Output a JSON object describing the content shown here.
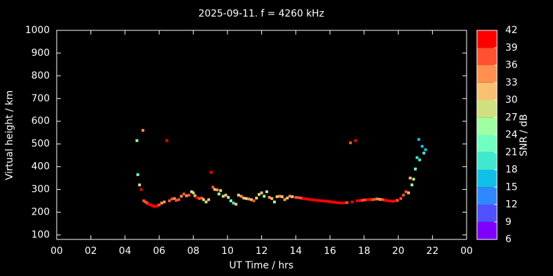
{
  "chart_data": {
    "type": "scatter",
    "title": "2025-09-11. f = 4260 kHz",
    "xlabel": "UT Time / hrs",
    "ylabel": "Virtual height / km",
    "xlim": [
      0,
      24
    ],
    "ylim": [
      80,
      1000
    ],
    "xticks": [
      {
        "value": 0,
        "label": "00"
      },
      {
        "value": 2,
        "label": "02"
      },
      {
        "value": 4,
        "label": "04"
      },
      {
        "value": 6,
        "label": "06"
      },
      {
        "value": 8,
        "label": "08"
      },
      10,
      12,
      14,
      16,
      18,
      20,
      22,
      {
        "value": 24,
        "label": "00"
      }
    ],
    "yticks": [
      100,
      200,
      300,
      400,
      500,
      600,
      700,
      800,
      900,
      1000
    ],
    "x": [
      4.7,
      4.75,
      4.85,
      4.95,
      5.05,
      5.1,
      5.2,
      5.3,
      5.4,
      5.5,
      5.6,
      5.7,
      5.8,
      5.9,
      6.0,
      6.15,
      6.3,
      6.45,
      6.6,
      6.75,
      6.9,
      7.0,
      7.15,
      7.3,
      7.45,
      7.6,
      7.75,
      7.9,
      8.0,
      8.1,
      8.2,
      8.35,
      8.5,
      8.6,
      8.75,
      8.9,
      9.05,
      9.15,
      9.25,
      9.4,
      9.5,
      9.6,
      9.75,
      9.9,
      10.05,
      10.2,
      10.35,
      10.5,
      10.65,
      10.8,
      10.95,
      11.1,
      11.25,
      11.4,
      11.55,
      11.7,
      11.85,
      12.0,
      12.15,
      12.3,
      12.45,
      12.6,
      12.75,
      12.9,
      13.05,
      13.2,
      13.35,
      13.5,
      13.65,
      13.8,
      14.0,
      14.15,
      14.3,
      14.45,
      14.6,
      14.75,
      14.9,
      15.05,
      15.2,
      15.35,
      15.5,
      15.65,
      15.8,
      15.95,
      16.1,
      16.25,
      16.4,
      16.55,
      16.7,
      16.85,
      17.0,
      17.2,
      17.3,
      17.5,
      17.6,
      17.75,
      17.9,
      18.05,
      18.2,
      18.35,
      18.5,
      18.65,
      18.8,
      18.95,
      19.1,
      19.25,
      19.4,
      19.55,
      19.7,
      19.85,
      19.95,
      20.15,
      20.3,
      20.45,
      20.6,
      20.7,
      20.8,
      20.9,
      21.0,
      21.1,
      21.2,
      21.25,
      21.4,
      21.5,
      21.6
    ],
    "values": [
      515,
      365,
      320,
      300,
      560,
      250,
      245,
      240,
      235,
      232,
      228,
      225,
      226,
      228,
      232,
      240,
      245,
      515,
      250,
      258,
      260,
      252,
      255,
      270,
      280,
      272,
      275,
      290,
      285,
      272,
      265,
      260,
      262,
      255,
      245,
      255,
      375,
      310,
      300,
      298,
      280,
      295,
      270,
      275,
      265,
      250,
      240,
      235,
      275,
      270,
      262,
      260,
      258,
      255,
      250,
      262,
      278,
      285,
      270,
      290,
      265,
      260,
      245,
      268,
      270,
      268,
      255,
      262,
      270,
      268,
      265,
      264,
      262,
      260,
      258,
      257,
      255,
      254,
      252,
      251,
      250,
      249,
      248,
      247,
      245,
      244,
      242,
      241,
      240,
      241,
      242,
      505,
      245,
      515,
      250,
      251,
      252,
      254,
      255,
      256,
      255,
      257,
      258,
      256,
      255,
      252,
      250,
      249,
      248,
      250,
      252,
      260,
      275,
      290,
      285,
      350,
      320,
      345,
      390,
      440,
      520,
      430,
      490,
      460,
      475
    ],
    "snr": [
      24,
      21,
      27,
      39,
      33,
      36,
      36,
      36,
      39,
      39,
      39,
      39,
      39,
      39,
      36,
      33,
      33,
      42,
      36,
      36,
      33,
      36,
      36,
      33,
      36,
      33,
      36,
      27,
      27,
      30,
      39,
      36,
      36,
      27,
      27,
      30,
      39,
      36,
      30,
      33,
      24,
      27,
      27,
      30,
      24,
      24,
      18,
      30,
      27,
      33,
      30,
      27,
      33,
      30,
      36,
      30,
      27,
      30,
      24,
      24,
      33,
      30,
      24,
      30,
      33,
      30,
      33,
      30,
      33,
      30,
      36,
      36,
      36,
      39,
      39,
      39,
      39,
      39,
      39,
      39,
      39,
      39,
      39,
      39,
      39,
      39,
      39,
      39,
      39,
      39,
      36,
      36,
      39,
      39,
      39,
      39,
      36,
      36,
      39,
      39,
      36,
      36,
      33,
      33,
      36,
      39,
      39,
      39,
      39,
      39,
      36,
      36,
      36,
      36,
      30,
      30,
      24,
      27,
      21,
      18,
      15,
      18,
      15,
      18,
      15
    ],
    "colorbar": {
      "label": "SNR / dB",
      "lim": [
        6,
        42
      ],
      "ticks": [
        6,
        9,
        12,
        15,
        18,
        21,
        24,
        27,
        30,
        33,
        36,
        39,
        42
      ],
      "colors": [
        "#8000ff",
        "#5050ff",
        "#3088ff",
        "#10c0e8",
        "#40e8d0",
        "#70ffc0",
        "#a0ffa0",
        "#d0e080",
        "#f8c070",
        "#ff9050",
        "#ff5030",
        "#ff0000"
      ]
    }
  }
}
